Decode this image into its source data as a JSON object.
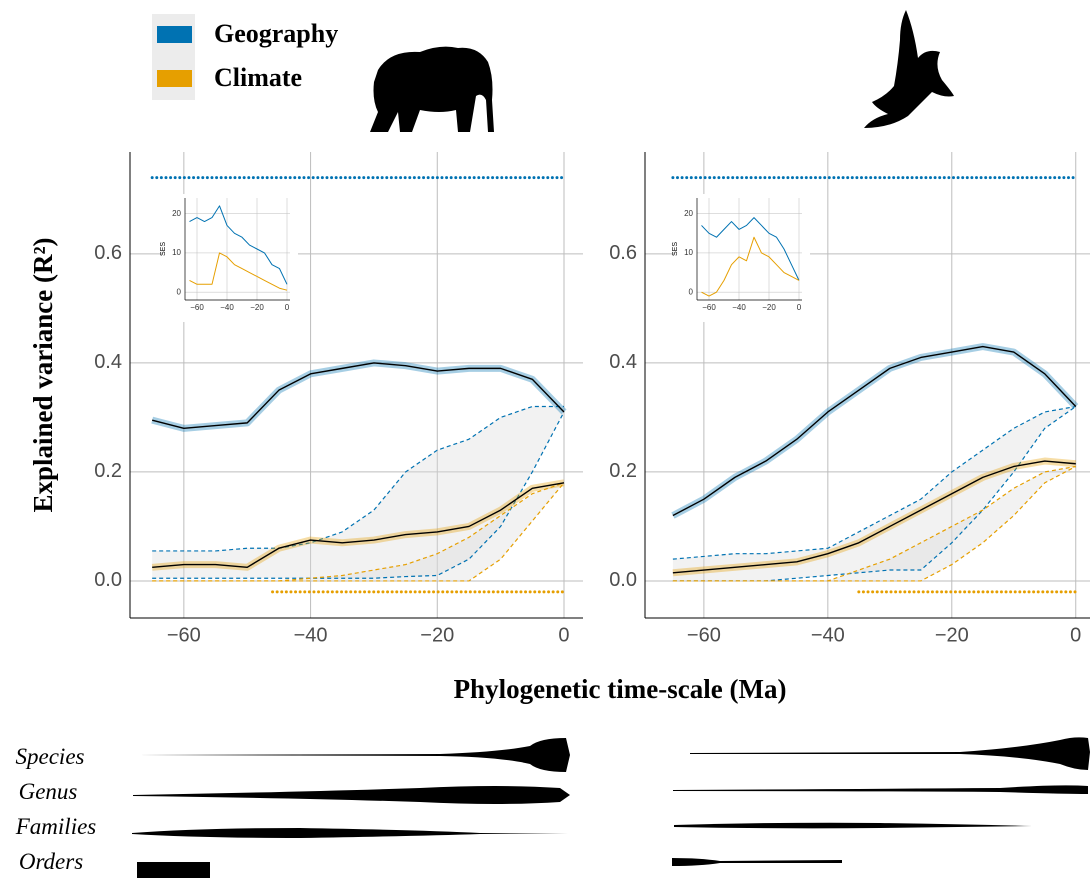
{
  "legend_names_from": "series",
  "ylabel": "Explained variance (R²)",
  "xlabel": "Phylogenetic time-scale (Ma)",
  "ranks": [
    "Species",
    "Genus",
    "Families",
    "Orders"
  ],
  "chart_data": [
    {
      "type": "line",
      "x": [
        -65,
        -60,
        -55,
        -50,
        -45,
        -40,
        -35,
        -30,
        -25,
        -20,
        -15,
        -10,
        -5,
        0
      ],
      "xlim": [
        -68.5,
        3
      ],
      "ylim": [
        -0.068,
        0.787
      ],
      "xticks": [
        {
          "value": -60,
          "label": "−60"
        },
        {
          "value": -40,
          "label": "−40"
        },
        {
          "value": -20,
          "label": "−20"
        },
        0
      ],
      "yticks": [
        {
          "value": 0,
          "label": "0.0"
        },
        0.2,
        0.4,
        0.6
      ],
      "grid": true,
      "series": [
        {
          "name": "Geography",
          "color": "#0072b2",
          "values": [
            0.295,
            0.28,
            0.285,
            0.29,
            0.35,
            0.38,
            0.39,
            0.4,
            0.395,
            0.385,
            0.39,
            0.39,
            0.37,
            0.31
          ]
        },
        {
          "name": "Climate",
          "color": "#e69f00",
          "values": [
            0.025,
            0.03,
            0.03,
            0.025,
            0.06,
            0.075,
            0.07,
            0.075,
            0.085,
            0.09,
            0.1,
            0.13,
            0.17,
            0.18
          ]
        }
      ],
      "null_bounds": [
        {
          "color": "#0072b2",
          "upper": [
            0.055,
            0.055,
            0.055,
            0.06,
            0.06,
            0.07,
            0.09,
            0.13,
            0.2,
            0.24,
            0.26,
            0.3,
            0.32,
            0.32
          ],
          "lower": [
            0.005,
            0.005,
            0.005,
            0.005,
            0.005,
            0.005,
            0.005,
            0.005,
            0.008,
            0.01,
            0.04,
            0.1,
            0.2,
            0.31
          ]
        },
        {
          "color": "#e69f00",
          "upper": [
            0,
            0,
            0,
            0,
            0,
            0.005,
            0.01,
            0.02,
            0.03,
            0.05,
            0.08,
            0.12,
            0.16,
            0.18
          ],
          "lower": [
            0,
            0,
            0,
            0,
            0,
            0,
            0,
            0,
            0,
            0,
            0,
            0.04,
            0.11,
            0.18
          ]
        }
      ],
      "significance": [
        {
          "color": "#0072b2",
          "y": 0.74,
          "x": [
            -65,
            0
          ]
        },
        {
          "color": "#e69f00",
          "y": -0.02,
          "x": [
            -46,
            0
          ]
        }
      ],
      "inset": {
        "type": "line",
        "ylabel": "SES",
        "x": [
          -65,
          -60,
          -55,
          -50,
          -45,
          -40,
          -35,
          -30,
          -25,
          -20,
          -15,
          -10,
          -5,
          0
        ],
        "xlim": [
          -68,
          2
        ],
        "ylim": [
          -2,
          24
        ],
        "xticks": [
          {
            "value": -60,
            "label": "−60"
          },
          {
            "value": -40,
            "label": "−40"
          },
          {
            "value": -20,
            "label": "−20"
          },
          0
        ],
        "yticks": [
          0,
          10,
          20
        ],
        "series": [
          {
            "color": "#0072b2",
            "values": [
              18,
              19,
              18,
              19,
              22,
              17,
              15,
              14,
              12,
              11,
              10,
              7,
              6,
              2
            ]
          },
          {
            "color": "#e69f00",
            "values": [
              3,
              2,
              2,
              2,
              10,
              9,
              7,
              6,
              5,
              4,
              3,
              2,
              1,
              0.5
            ]
          }
        ]
      }
    },
    {
      "type": "line",
      "x": [
        -65,
        -60,
        -55,
        -50,
        -45,
        -40,
        -35,
        -30,
        -25,
        -20,
        -15,
        -10,
        -5,
        0
      ],
      "xlim": [
        -69.5,
        2.3
      ],
      "ylim": [
        -0.068,
        0.787
      ],
      "xticks": [
        {
          "value": -60,
          "label": "−60"
        },
        {
          "value": -40,
          "label": "−40"
        },
        {
          "value": -20,
          "label": "−20"
        },
        0
      ],
      "yticks": [
        {
          "value": 0,
          "label": "0.0"
        },
        0.2,
        0.4,
        0.6
      ],
      "grid": true,
      "series": [
        {
          "name": "Geography",
          "color": "#0072b2",
          "values": [
            0.12,
            0.15,
            0.19,
            0.22,
            0.26,
            0.31,
            0.35,
            0.39,
            0.41,
            0.42,
            0.43,
            0.42,
            0.38,
            0.32
          ]
        },
        {
          "name": "Climate",
          "color": "#e69f00",
          "values": [
            0.015,
            0.02,
            0.025,
            0.03,
            0.035,
            0.05,
            0.07,
            0.1,
            0.13,
            0.16,
            0.19,
            0.21,
            0.22,
            0.215
          ]
        }
      ],
      "null_bounds": [
        {
          "color": "#0072b2",
          "upper": [
            0.04,
            0.045,
            0.05,
            0.05,
            0.055,
            0.06,
            0.09,
            0.12,
            0.15,
            0.2,
            0.24,
            0.28,
            0.31,
            0.32
          ],
          "lower": [
            0,
            0,
            0,
            0,
            0.005,
            0.01,
            0.015,
            0.02,
            0.02,
            0.07,
            0.13,
            0.2,
            0.28,
            0.32
          ]
        },
        {
          "color": "#e69f00",
          "upper": [
            0,
            0,
            0,
            0,
            0,
            0,
            0.02,
            0.04,
            0.07,
            0.1,
            0.13,
            0.17,
            0.2,
            0.21
          ],
          "lower": [
            0,
            0,
            0,
            0,
            0,
            0,
            0,
            0,
            0,
            0.03,
            0.07,
            0.12,
            0.18,
            0.21
          ]
        }
      ],
      "significance": [
        {
          "color": "#0072b2",
          "y": 0.74,
          "x": [
            -65,
            0
          ]
        },
        {
          "color": "#e69f00",
          "y": -0.02,
          "x": [
            -35,
            0
          ]
        }
      ],
      "inset": {
        "type": "line",
        "ylabel": "SES",
        "x": [
          -65,
          -60,
          -55,
          -50,
          -45,
          -40,
          -35,
          -30,
          -25,
          -20,
          -15,
          -10,
          -5,
          0
        ],
        "xlim": [
          -68,
          2
        ],
        "ylim": [
          -2,
          24
        ],
        "xticks": [
          {
            "value": -60,
            "label": "−60"
          },
          {
            "value": -40,
            "label": "−40"
          },
          {
            "value": -20,
            "label": "−20"
          },
          0
        ],
        "yticks": [
          0,
          10,
          20
        ],
        "series": [
          {
            "color": "#0072b2",
            "values": [
              17,
              15,
              14,
              16,
              18,
              16,
              17,
              19,
              17,
              15,
              14,
              11,
              7,
              3
            ]
          },
          {
            "color": "#e69f00",
            "values": [
              0,
              -1,
              0,
              3,
              7,
              9,
              8,
              14,
              10,
              9,
              7,
              5,
              4,
              3
            ]
          }
        ]
      }
    }
  ]
}
